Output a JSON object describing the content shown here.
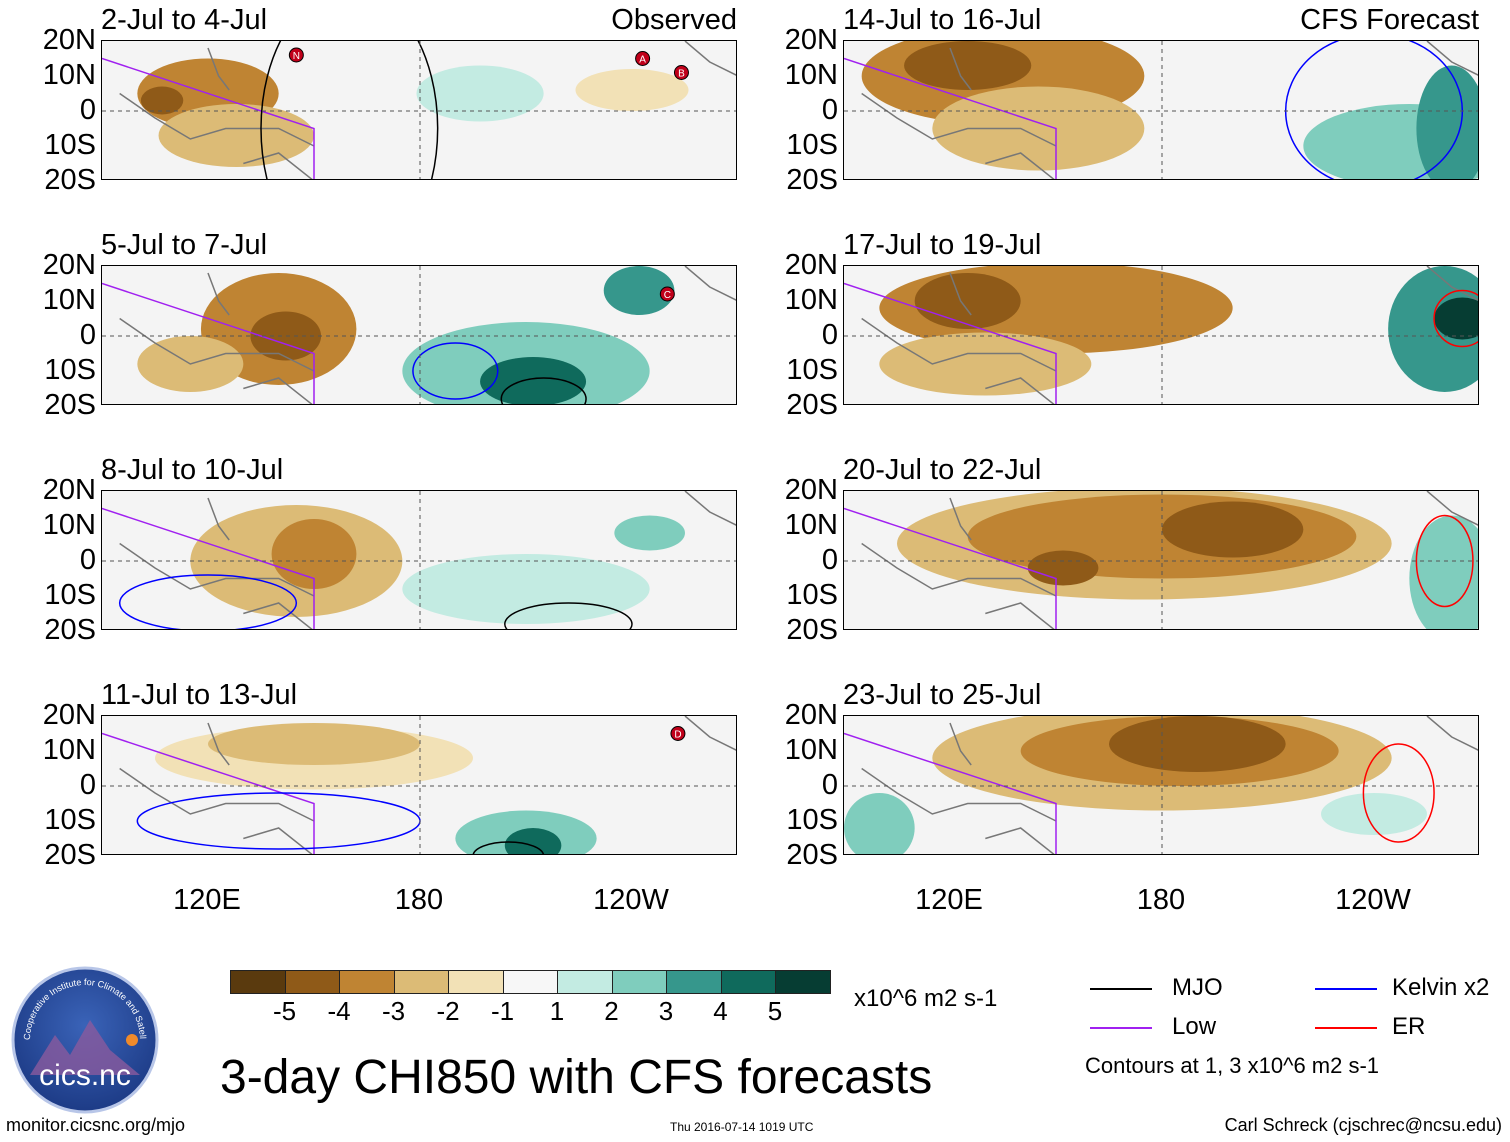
{
  "chart_data": {
    "type": "heatmap",
    "title": "3-day CHI850 with CFS forecasts",
    "units": "x10^6 m2 s-1",
    "lat_ticks": [
      "20N",
      "10N",
      "0",
      "10S",
      "20S"
    ],
    "lon_ticks": [
      "120E",
      "180",
      "120W"
    ],
    "lat_range": [
      -20,
      20
    ],
    "lon_range": [
      90,
      270
    ],
    "colorbar": {
      "ticks": [
        "-5",
        "-4",
        "-3",
        "-2",
        "-1",
        "1",
        "2",
        "3",
        "4",
        "5"
      ],
      "colors": [
        "#5a3a0e",
        "#8f5a18",
        "#bf8433",
        "#dcbb76",
        "#f2e1b6",
        "#f7f7f7",
        "#c3ebe2",
        "#7fcdbd",
        "#36978c",
        "#0f6a5c",
        "#063d33"
      ]
    },
    "panels": [
      {
        "title": "2-Jul to 4-Jul",
        "tag": "Observed",
        "blobs": [
          {
            "lon": 120,
            "lat": 5,
            "rx": 20,
            "ry": 10,
            "v": -3
          },
          {
            "lon": 107,
            "lat": 3,
            "rx": 6,
            "ry": 4,
            "v": -4
          },
          {
            "lon": 128,
            "lat": -7,
            "rx": 22,
            "ry": 9,
            "v": -2
          },
          {
            "lon": 197,
            "lat": 5,
            "rx": 18,
            "ry": 8,
            "v": 1
          },
          {
            "lon": 240,
            "lat": 6,
            "rx": 16,
            "ry": 6,
            "v": -1
          }
        ],
        "storms": [
          {
            "label": "N",
            "lon": 145,
            "lat": 16
          },
          {
            "label": "A",
            "lon": 243,
            "lat": 15
          },
          {
            "label": "B",
            "lon": 254,
            "lat": 11
          }
        ],
        "contours": [
          {
            "color": "#000000",
            "lon": 160,
            "lat": -5,
            "rx": 25,
            "ry": 40
          }
        ]
      },
      {
        "title": "14-Jul to 16-Jul",
        "tag": "CFS Forecast",
        "blobs": [
          {
            "lon": 135,
            "lat": 10,
            "rx": 40,
            "ry": 14,
            "v": -3
          },
          {
            "lon": 125,
            "lat": 13,
            "rx": 18,
            "ry": 7,
            "v": -4
          },
          {
            "lon": 145,
            "lat": -5,
            "rx": 30,
            "ry": 12,
            "v": -2
          },
          {
            "lon": 250,
            "lat": -10,
            "rx": 30,
            "ry": 12,
            "v": 2
          },
          {
            "lon": 262,
            "lat": -5,
            "rx": 10,
            "ry": 18,
            "v": 3
          }
        ],
        "storms": [],
        "contours": [
          {
            "color": "#0000ff",
            "lon": 240,
            "lat": 0,
            "rx": 25,
            "ry": 22
          }
        ]
      },
      {
        "title": "5-Jul to 7-Jul",
        "tag": "",
        "blobs": [
          {
            "lon": 140,
            "lat": 2,
            "rx": 22,
            "ry": 16,
            "v": -3
          },
          {
            "lon": 142,
            "lat": 0,
            "rx": 10,
            "ry": 7,
            "v": -4
          },
          {
            "lon": 115,
            "lat": -8,
            "rx": 15,
            "ry": 8,
            "v": -2
          },
          {
            "lon": 210,
            "lat": -10,
            "rx": 35,
            "ry": 14,
            "v": 2
          },
          {
            "lon": 212,
            "lat": -13,
            "rx": 15,
            "ry": 7,
            "v": 4
          },
          {
            "lon": 242,
            "lat": 13,
            "rx": 10,
            "ry": 7,
            "v": 3
          }
        ],
        "storms": [
          {
            "label": "C",
            "lon": 250,
            "lat": 12
          }
        ],
        "contours": [
          {
            "color": "#0000ff",
            "lon": 190,
            "lat": -10,
            "rx": 12,
            "ry": 8
          },
          {
            "color": "#000000",
            "lon": 215,
            "lat": -18,
            "rx": 12,
            "ry": 6
          }
        ]
      },
      {
        "title": "17-Jul to 19-Jul",
        "tag": "",
        "blobs": [
          {
            "lon": 150,
            "lat": 8,
            "rx": 50,
            "ry": 13,
            "v": -3
          },
          {
            "lon": 125,
            "lat": 10,
            "rx": 15,
            "ry": 8,
            "v": -4
          },
          {
            "lon": 130,
            "lat": -8,
            "rx": 30,
            "ry": 9,
            "v": -2
          },
          {
            "lon": 260,
            "lat": 2,
            "rx": 16,
            "ry": 18,
            "v": 3
          },
          {
            "lon": 265,
            "lat": 5,
            "rx": 8,
            "ry": 6,
            "v": 5
          }
        ],
        "storms": [],
        "contours": [
          {
            "color": "#ff0000",
            "lon": 265,
            "lat": 5,
            "rx": 8,
            "ry": 8
          }
        ]
      },
      {
        "title": "8-Jul to 10-Jul",
        "tag": "",
        "blobs": [
          {
            "lon": 145,
            "lat": 0,
            "rx": 30,
            "ry": 16,
            "v": -2
          },
          {
            "lon": 150,
            "lat": 2,
            "rx": 12,
            "ry": 10,
            "v": -3
          },
          {
            "lon": 210,
            "lat": -8,
            "rx": 35,
            "ry": 10,
            "v": 1
          },
          {
            "lon": 245,
            "lat": 8,
            "rx": 10,
            "ry": 5,
            "v": 2
          }
        ],
        "storms": [],
        "contours": [
          {
            "color": "#0000ff",
            "lon": 120,
            "lat": -12,
            "rx": 25,
            "ry": 8
          },
          {
            "color": "#000000",
            "lon": 222,
            "lat": -18,
            "rx": 18,
            "ry": 6
          }
        ]
      },
      {
        "title": "20-Jul to 22-Jul",
        "tag": "",
        "blobs": [
          {
            "lon": 175,
            "lat": 5,
            "rx": 70,
            "ry": 16,
            "v": -2
          },
          {
            "lon": 180,
            "lat": 7,
            "rx": 55,
            "ry": 12,
            "v": -3
          },
          {
            "lon": 200,
            "lat": 9,
            "rx": 20,
            "ry": 8,
            "v": -4
          },
          {
            "lon": 152,
            "lat": -2,
            "rx": 10,
            "ry": 5,
            "v": -4
          },
          {
            "lon": 262,
            "lat": -5,
            "rx": 12,
            "ry": 18,
            "v": 2
          }
        ],
        "storms": [],
        "contours": [
          {
            "color": "#ff0000",
            "lon": 260,
            "lat": 0,
            "rx": 8,
            "ry": 13
          }
        ]
      },
      {
        "title": "11-Jul to 13-Jul",
        "tag": "",
        "blobs": [
          {
            "lon": 150,
            "lat": 8,
            "rx": 45,
            "ry": 9,
            "v": -1
          },
          {
            "lon": 150,
            "lat": 12,
            "rx": 30,
            "ry": 6,
            "v": -2
          },
          {
            "lon": 210,
            "lat": -15,
            "rx": 20,
            "ry": 8,
            "v": 2
          },
          {
            "lon": 212,
            "lat": -17,
            "rx": 8,
            "ry": 5,
            "v": 4
          }
        ],
        "storms": [
          {
            "label": "D",
            "lon": 253,
            "lat": 15
          }
        ],
        "contours": [
          {
            "color": "#0000ff",
            "lon": 140,
            "lat": -10,
            "rx": 40,
            "ry": 8
          },
          {
            "color": "#000000",
            "lon": 205,
            "lat": -20,
            "rx": 10,
            "ry": 4
          }
        ]
      },
      {
        "title": "23-Jul to 25-Jul",
        "tag": "",
        "blobs": [
          {
            "lon": 180,
            "lat": 8,
            "rx": 65,
            "ry": 15,
            "v": -2
          },
          {
            "lon": 185,
            "lat": 10,
            "rx": 45,
            "ry": 10,
            "v": -3
          },
          {
            "lon": 190,
            "lat": 12,
            "rx": 25,
            "ry": 8,
            "v": -4
          },
          {
            "lon": 100,
            "lat": -12,
            "rx": 10,
            "ry": 10,
            "v": 2
          },
          {
            "lon": 240,
            "lat": -8,
            "rx": 15,
            "ry": 6,
            "v": 1
          }
        ],
        "storms": [],
        "contours": [
          {
            "color": "#ff0000",
            "lon": 247,
            "lat": -2,
            "rx": 10,
            "ry": 14
          }
        ]
      }
    ]
  },
  "legend": {
    "items": [
      {
        "label": "MJO",
        "color": "#000000"
      },
      {
        "label": "Kelvin x2",
        "color": "#0000ff"
      },
      {
        "label": "Low",
        "color": "#a020f0"
      },
      {
        "label": "ER",
        "color": "#ff0000"
      }
    ],
    "contour_note": "Contours at 1, 3 x10^6 m2 s-1"
  },
  "logo_text": "cics.nc",
  "logo_ring_text": "Cooperative Institute for Climate and Satellites",
  "footer": {
    "url": "monitor.cicsnc.org/mjo",
    "timestamp": "Thu 2016-07-14 1019 UTC",
    "credit": "Carl Schreck (cjschrec@ncsu.edu)"
  }
}
